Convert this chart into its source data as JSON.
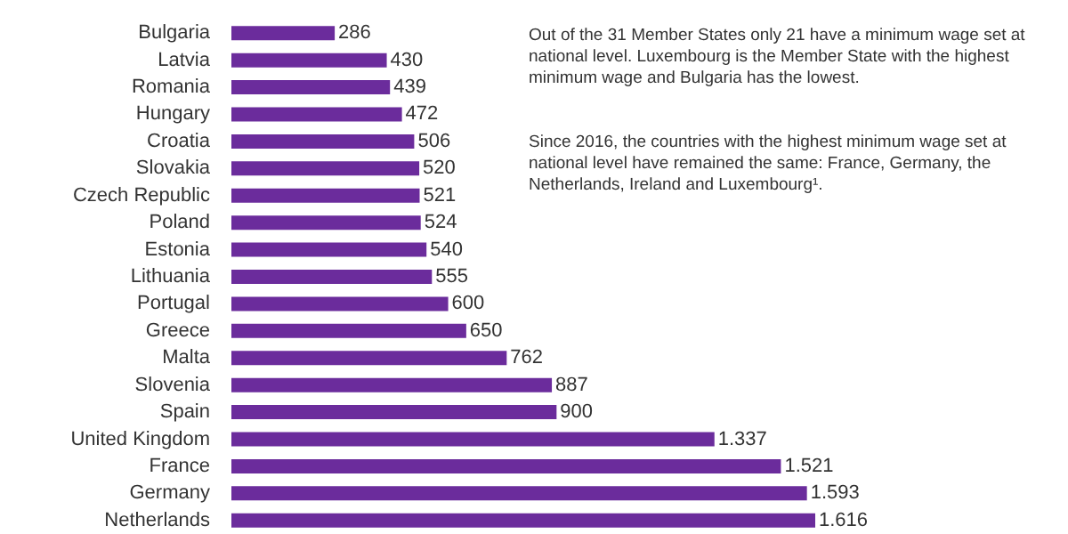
{
  "chart_data": {
    "type": "bar",
    "orientation": "horizontal",
    "categories": [
      "Bulgaria",
      "Latvia",
      "Romania",
      "Hungary",
      "Croatia",
      "Slovakia",
      "Czech Republic",
      "Poland",
      "Estonia",
      "Lithuania",
      "Portugal",
      "Greece",
      "Malta",
      "Slovenia",
      "Spain",
      "United Kingdom",
      "France",
      "Germany",
      "Netherlands"
    ],
    "values": [
      286,
      430,
      439,
      472,
      506,
      520,
      521,
      524,
      540,
      555,
      600,
      650,
      762,
      887,
      900,
      1337,
      1521,
      1593,
      1616
    ],
    "value_labels": [
      "286",
      "430",
      "439",
      "472",
      "506",
      "520",
      "521",
      "524",
      "540",
      "555",
      "600",
      "650",
      "762",
      "887",
      "900",
      "1.337",
      "1.521",
      "1.593",
      "1.616"
    ],
    "color": "#6b2c9c",
    "annotations": [
      "Out of the 31 Member States only 21 have a minimum wage set at national level. Luxembourg is the Member State with the highest minimum wage and Bulgaria has the lowest.",
      "Since 2016, the countries with the highest minimum wage set at national level have remained the same: France, Germany, the Netherlands, Ireland and Luxembourg¹."
    ]
  }
}
